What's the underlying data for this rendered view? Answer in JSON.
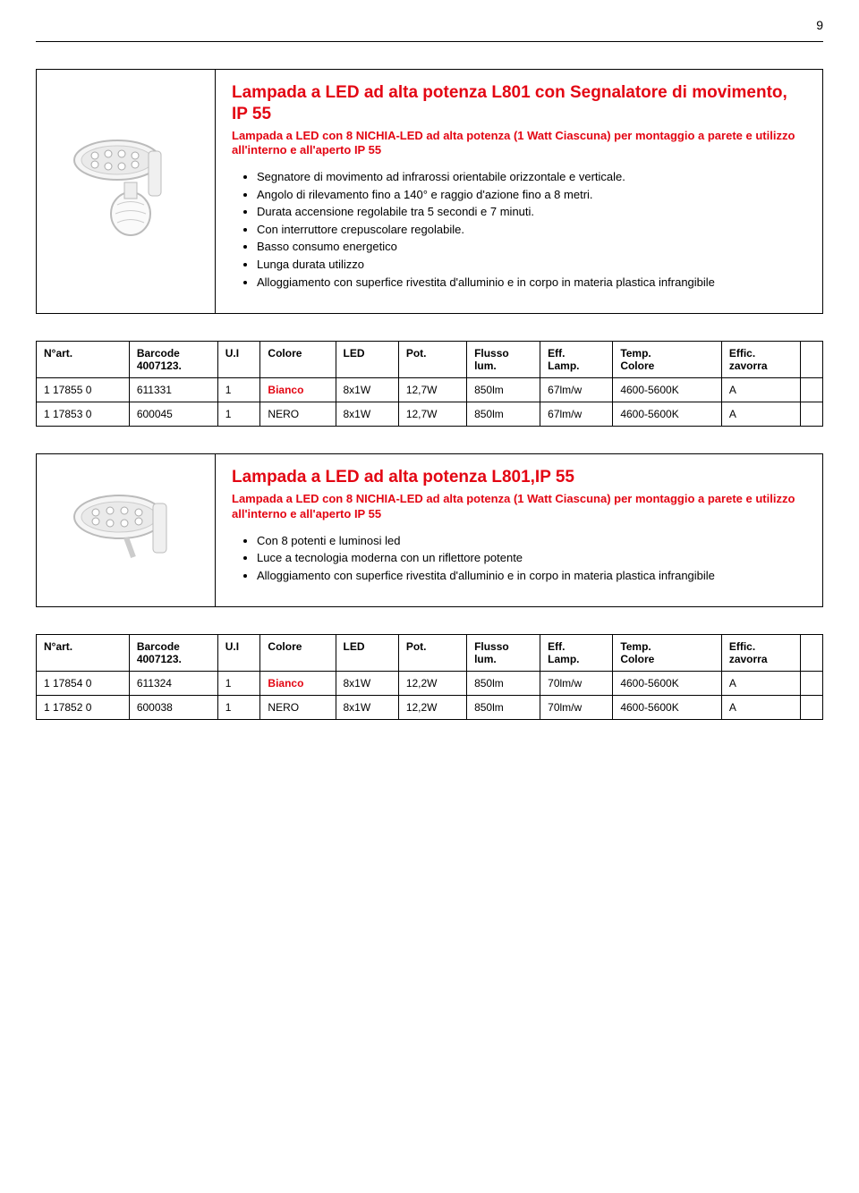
{
  "page_number": "9",
  "colors": {
    "text": "#000000",
    "accent_red": "#e30613",
    "border": "#000000",
    "background": "#ffffff"
  },
  "product1": {
    "title": "Lampada a LED ad alta potenza L801 con Segnalatore di movimento, IP 55",
    "subtitle": "Lampada a LED con 8 NICHIA-LED ad alta potenza (1 Watt Ciascuna) per montaggio a parete e utilizzo all'interno e all'aperto IP 55",
    "bullets": [
      "Segnatore di movimento ad infrarossi orientabile orizzontale e verticale.",
      "Angolo di rilevamento fino a 140° e raggio d'azione fino a 8 metri.",
      "Durata accensione regolabile tra 5 secondi e 7 minuti.",
      "Con interruttore crepuscolare regolabile.",
      "Basso consumo energetico",
      "Lunga durata utilizzo",
      "Alloggiamento con superfice rivestita d'alluminio e in corpo in materia plastica infrangibile"
    ]
  },
  "table_header": {
    "c0a": "N°art.",
    "c1a": "Barcode",
    "c1b": "4007123.",
    "c2": "U.I",
    "c3": "Colore",
    "c4": "LED",
    "c5": "Pot.",
    "c6a": "Flusso",
    "c6b": "lum.",
    "c7a": "Eff.",
    "c7b": "Lamp.",
    "c8a": "Temp.",
    "c8b": "Colore",
    "c9a": "Effic.",
    "c9b": "zavorra"
  },
  "table1_rows": [
    {
      "art": "1 17855 0",
      "barcode": "611331",
      "ui": "1",
      "colore": "Bianco",
      "colore_red": true,
      "led": "8x1W",
      "pot": "12,7W",
      "flusso": "850lm",
      "eff": "67lm/w",
      "temp": "4600-5600K",
      "effic": "A"
    },
    {
      "art": "1 17853 0",
      "barcode": "600045",
      "ui": "1",
      "colore": "NERO",
      "colore_red": false,
      "led": "8x1W",
      "pot": "12,7W",
      "flusso": "850lm",
      "eff": "67lm/w",
      "temp": "4600-5600K",
      "effic": "A"
    }
  ],
  "product2": {
    "title": "Lampada a LED ad alta potenza L801,IP 55",
    "subtitle": "Lampada a LED con 8 NICHIA-LED ad alta potenza (1 Watt Ciascuna) per montaggio a parete e utilizzo all'interno e all'aperto IP 55",
    "bullets": [
      "Con 8 potenti e luminosi led",
      "Luce a tecnologia moderna con un riflettore potente",
      "Alloggiamento con superfice rivestita d'alluminio e in corpo in materia plastica infrangibile"
    ]
  },
  "table2_rows": [
    {
      "art": "1 17854 0",
      "barcode": "611324",
      "ui": "1",
      "colore": "Bianco",
      "colore_red": true,
      "led": "8x1W",
      "pot": "12,2W",
      "flusso": "850lm",
      "eff": "70lm/w",
      "temp": "4600-5600K",
      "effic": "A"
    },
    {
      "art": "1 17852 0",
      "barcode": "600038",
      "ui": "1",
      "colore": "NERO",
      "colore_red": false,
      "led": "8x1W",
      "pot": "12,2W",
      "flusso": "850lm",
      "eff": "70lm/w",
      "temp": "4600-5600K",
      "effic": "A"
    }
  ]
}
